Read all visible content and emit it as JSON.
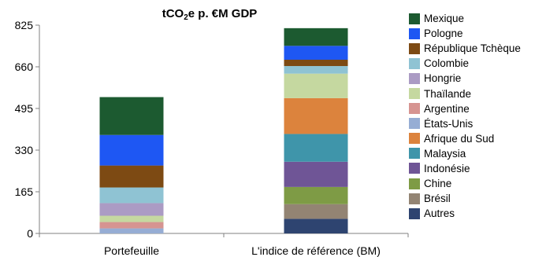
{
  "chart_data": {
    "type": "bar",
    "stacked": true,
    "title": "tCO₂e p. €M GDP",
    "categories": [
      "Portefeuille",
      "L'indice de référence (BM)"
    ],
    "ylim": [
      0,
      825
    ],
    "yticks": [
      "0",
      "165",
      "330",
      "495",
      "660",
      "825"
    ],
    "grid": false,
    "legend_position": "right",
    "series": [
      {
        "name": "Autres",
        "color": "#2e4470",
        "values": [
          0,
          58
        ]
      },
      {
        "name": "Brésil",
        "color": "#938473",
        "values": [
          0,
          58
        ]
      },
      {
        "name": "Chine",
        "color": "#7e9b45",
        "values": [
          0,
          68
        ]
      },
      {
        "name": "Indonésie",
        "color": "#6f5596",
        "values": [
          0,
          100
        ]
      },
      {
        "name": "Malaysia",
        "color": "#3f95aa",
        "values": [
          0,
          110
        ]
      },
      {
        "name": "Afrique du Sud",
        "color": "#dc833d",
        "values": [
          0,
          142
        ]
      },
      {
        "name": "États-Unis",
        "color": "#96add4",
        "values": [
          20,
          0
        ]
      },
      {
        "name": "Argentine",
        "color": "#d69491",
        "values": [
          25,
          0
        ]
      },
      {
        "name": "Thaïlande",
        "color": "#c5d8a0",
        "values": [
          25,
          97
        ]
      },
      {
        "name": "Hongrie",
        "color": "#ab9bc4",
        "values": [
          50,
          0
        ]
      },
      {
        "name": "Colombie",
        "color": "#8fc3d3",
        "values": [
          62,
          30
        ]
      },
      {
        "name": "République Tchèque",
        "color": "#7d4a13",
        "values": [
          87,
          25
        ]
      },
      {
        "name": "Pologne",
        "color": "#1e57f3",
        "values": [
          121,
          55
        ]
      },
      {
        "name": "Mexique",
        "color": "#1c5a30",
        "values": [
          150,
          70
        ]
      }
    ]
  }
}
